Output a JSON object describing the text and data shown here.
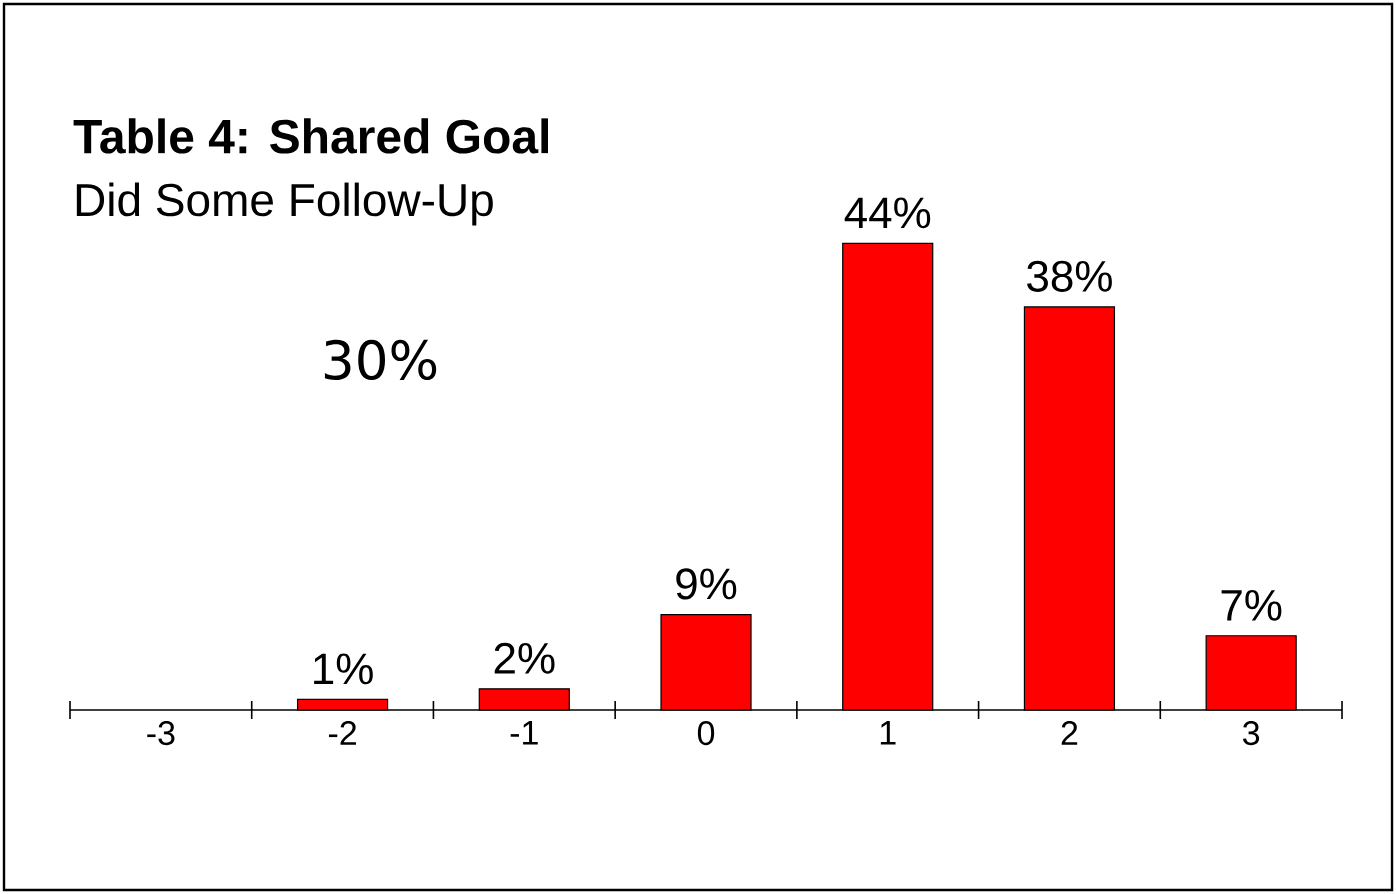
{
  "chart_data": {
    "type": "bar",
    "title": "Table 4: Shared Goal",
    "subtitle": "Did Some Follow-Up",
    "annotations": [
      "30%"
    ],
    "categories": [
      "-3",
      "-2",
      "-1",
      "0",
      "1",
      "2",
      "3"
    ],
    "values": [
      null,
      1,
      2,
      9,
      44,
      38,
      7
    ],
    "value_labels": [
      null,
      "1%",
      "2%",
      "9%",
      "44%",
      "38%",
      "7%"
    ],
    "color": "#ff0000"
  }
}
